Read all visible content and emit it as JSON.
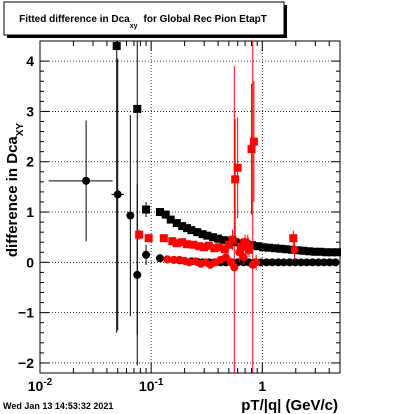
{
  "title": "Fitted difference in Dca",
  "title_sub": "xy",
  "title_rest": "for Global Rec Pion EtapT",
  "xlabel": "pT/|q| (GeV/c)",
  "ylabel": "difference in Dca",
  "ylabel_sub": "XY",
  "timestamp": "Wed Jan 13 14:53:32 2021",
  "chart_data": {
    "type": "scatter",
    "x_scale": "log",
    "xlim": [
      0.01,
      5.0
    ],
    "ylim": [
      -2.2,
      4.4
    ],
    "grid": true,
    "x_ticks": [
      {
        "value": 0.01,
        "base": "10",
        "exp": "-2"
      },
      {
        "value": 0.1,
        "base": "10",
        "exp": "-1"
      },
      {
        "value": 1,
        "base": "1",
        "exp": ""
      }
    ],
    "y_ticks": [
      -2,
      -1,
      0,
      1,
      2,
      3,
      4
    ],
    "series": [
      {
        "marker": "square",
        "color": "#000000",
        "points": [
          {
            "x": 0.049,
            "y": 4.3,
            "err": 5.7
          },
          {
            "x": 0.075,
            "y": 3.05,
            "err": 4.5
          },
          {
            "x": 0.09,
            "y": 1.05,
            "err": 0.15
          },
          {
            "x": 0.12,
            "y": 1.0,
            "err": 0.08
          },
          {
            "x": 0.135,
            "y": 0.95,
            "err": 0.08
          },
          {
            "x": 0.15,
            "y": 0.85,
            "err": 0.06
          },
          {
            "x": 0.17,
            "y": 0.78,
            "err": 0.05
          },
          {
            "x": 0.19,
            "y": 0.72,
            "err": 0.05
          },
          {
            "x": 0.21,
            "y": 0.68,
            "err": 0.05
          },
          {
            "x": 0.23,
            "y": 0.64,
            "err": 0.04
          },
          {
            "x": 0.26,
            "y": 0.6,
            "err": 0.04
          },
          {
            "x": 0.29,
            "y": 0.56,
            "err": 0.04
          },
          {
            "x": 0.32,
            "y": 0.53,
            "err": 0.04
          },
          {
            "x": 0.36,
            "y": 0.5,
            "err": 0.04
          },
          {
            "x": 0.4,
            "y": 0.47,
            "err": 0.05
          },
          {
            "x": 0.45,
            "y": 0.44,
            "err": 0.05
          },
          {
            "x": 0.5,
            "y": 0.42,
            "err": 0.05
          },
          {
            "x": 0.57,
            "y": 0.4,
            "err": 0.05
          },
          {
            "x": 0.64,
            "y": 0.38,
            "err": 0.05
          },
          {
            "x": 0.72,
            "y": 0.36,
            "err": 0.05
          },
          {
            "x": 0.81,
            "y": 0.34,
            "err": 0.05
          },
          {
            "x": 0.91,
            "y": 0.32,
            "err": 0.05
          },
          {
            "x": 1.02,
            "y": 0.3,
            "err": 0.05
          },
          {
            "x": 1.15,
            "y": 0.29,
            "err": 0.05
          },
          {
            "x": 1.3,
            "y": 0.28,
            "err": 0.05
          },
          {
            "x": 1.46,
            "y": 0.27,
            "err": 0.05
          },
          {
            "x": 1.64,
            "y": 0.26,
            "err": 0.05
          },
          {
            "x": 1.85,
            "y": 0.25,
            "err": 0.05
          },
          {
            "x": 2.08,
            "y": 0.24,
            "err": 0.05
          },
          {
            "x": 2.34,
            "y": 0.23,
            "err": 0.05
          },
          {
            "x": 2.63,
            "y": 0.22,
            "err": 0.05
          },
          {
            "x": 2.96,
            "y": 0.21,
            "err": 0.05
          },
          {
            "x": 3.33,
            "y": 0.21,
            "err": 0.05
          },
          {
            "x": 3.75,
            "y": 0.2,
            "err": 0.05
          },
          {
            "x": 4.22,
            "y": 0.2,
            "err": 0.05
          },
          {
            "x": 4.7,
            "y": 0.2,
            "err": 0.05
          }
        ]
      },
      {
        "marker": "circle",
        "color": "#000000",
        "points": [
          {
            "x": 0.026,
            "y": 1.62,
            "err": 1.2,
            "xerr": [
              0.012,
              0.045
            ]
          },
          {
            "x": 0.05,
            "y": 1.35,
            "err": 2.7,
            "xerr": [
              0.044,
              0.057
            ]
          },
          {
            "x": 0.065,
            "y": 0.93,
            "err": 2.0
          },
          {
            "x": 0.075,
            "y": -0.25,
            "err": 1.8
          },
          {
            "x": 0.09,
            "y": 0.15,
            "err": 0.2
          },
          {
            "x": 0.12,
            "y": 0.08,
            "err": 0.05
          },
          {
            "x": 0.14,
            "y": 0.06,
            "err": 0.04
          },
          {
            "x": 0.16,
            "y": 0.05,
            "err": 0.04
          },
          {
            "x": 0.18,
            "y": 0.04,
            "err": 0.04
          },
          {
            "x": 0.2,
            "y": 0.03,
            "err": 0.04
          },
          {
            "x": 0.23,
            "y": 0.02,
            "err": 0.04
          },
          {
            "x": 0.26,
            "y": 0.01,
            "err": 0.04
          },
          {
            "x": 0.29,
            "y": 0.0,
            "err": 0.04
          },
          {
            "x": 0.33,
            "y": 0.0,
            "err": 0.04
          },
          {
            "x": 0.37,
            "y": 0.0,
            "err": 0.04
          },
          {
            "x": 0.42,
            "y": 0.0,
            "err": 0.04
          },
          {
            "x": 0.47,
            "y": 0.0,
            "err": 0.04
          },
          {
            "x": 0.53,
            "y": 0.0,
            "err": 0.04
          },
          {
            "x": 0.6,
            "y": 0.0,
            "err": 0.04
          },
          {
            "x": 0.68,
            "y": 0.0,
            "err": 0.04
          },
          {
            "x": 0.76,
            "y": 0.0,
            "err": 0.04
          },
          {
            "x": 0.86,
            "y": 0.0,
            "err": 0.04
          },
          {
            "x": 0.97,
            "y": 0.0,
            "err": 0.04
          },
          {
            "x": 1.09,
            "y": 0.0,
            "err": 0.04
          },
          {
            "x": 1.23,
            "y": 0.0,
            "err": 0.04
          },
          {
            "x": 1.39,
            "y": 0.0,
            "err": 0.04
          },
          {
            "x": 1.56,
            "y": 0.0,
            "err": 0.04
          },
          {
            "x": 1.76,
            "y": 0.0,
            "err": 0.04
          },
          {
            "x": 1.98,
            "y": 0.0,
            "err": 0.04
          },
          {
            "x": 2.23,
            "y": 0.0,
            "err": 0.04
          },
          {
            "x": 2.51,
            "y": 0.0,
            "err": 0.04
          },
          {
            "x": 2.83,
            "y": 0.0,
            "err": 0.04
          },
          {
            "x": 3.19,
            "y": 0.0,
            "err": 0.04
          },
          {
            "x": 3.59,
            "y": 0.0,
            "err": 0.04
          },
          {
            "x": 4.04,
            "y": 0.0,
            "err": 0.04
          },
          {
            "x": 4.55,
            "y": 0.0,
            "err": 0.04
          }
        ]
      },
      {
        "marker": "square",
        "color": "#ff0000",
        "points": [
          {
            "x": 0.078,
            "y": 0.55,
            "err": 0.1
          },
          {
            "x": 0.095,
            "y": 0.48,
            "err": 0.08
          },
          {
            "x": 0.13,
            "y": 0.48,
            "err": 0.06
          },
          {
            "x": 0.155,
            "y": 0.42,
            "err": 0.06
          },
          {
            "x": 0.17,
            "y": 0.38,
            "err": 0.06
          },
          {
            "x": 0.19,
            "y": 0.4,
            "err": 0.06
          },
          {
            "x": 0.21,
            "y": 0.36,
            "err": 0.06
          },
          {
            "x": 0.24,
            "y": 0.35,
            "err": 0.06
          },
          {
            "x": 0.27,
            "y": 0.32,
            "err": 0.06
          },
          {
            "x": 0.3,
            "y": 0.3,
            "err": 0.06
          },
          {
            "x": 0.33,
            "y": 0.33,
            "err": 0.06
          },
          {
            "x": 0.37,
            "y": 0.28,
            "err": 0.07
          },
          {
            "x": 0.41,
            "y": 0.3,
            "err": 0.07
          },
          {
            "x": 0.46,
            "y": 0.26,
            "err": 0.08
          },
          {
            "x": 0.5,
            "y": 0.35,
            "err": 0.1
          },
          {
            "x": 0.54,
            "y": 0.45,
            "err": 0.2
          },
          {
            "x": 0.57,
            "y": 1.65,
            "err": 1.2
          },
          {
            "x": 0.6,
            "y": 1.88,
            "err": 1.0
          },
          {
            "x": 0.64,
            "y": 0.3,
            "err": 0.15
          },
          {
            "x": 0.7,
            "y": 0.4,
            "err": 0.15
          },
          {
            "x": 0.76,
            "y": 0.25,
            "err": 0.15
          },
          {
            "x": 0.8,
            "y": 2.25,
            "err": 1.3
          },
          {
            "x": 0.84,
            "y": 2.4,
            "err": 1.2
          },
          {
            "x": 1.9,
            "y": 0.48,
            "err": 0.15
          }
        ]
      },
      {
        "marker": "circle",
        "color": "#ff0000",
        "points": [
          {
            "x": 0.14,
            "y": 0.06,
            "err": 0.05
          },
          {
            "x": 0.16,
            "y": 0.05,
            "err": 0.05
          },
          {
            "x": 0.18,
            "y": 0.05,
            "err": 0.05
          },
          {
            "x": 0.2,
            "y": 0.03,
            "err": 0.05
          },
          {
            "x": 0.22,
            "y": 0.0,
            "err": 0.05
          },
          {
            "x": 0.25,
            "y": 0.02,
            "err": 0.05
          },
          {
            "x": 0.28,
            "y": -0.03,
            "err": 0.05
          },
          {
            "x": 0.31,
            "y": 0.0,
            "err": 0.05
          },
          {
            "x": 0.34,
            "y": -0.05,
            "err": 0.05
          },
          {
            "x": 0.38,
            "y": 0.0,
            "err": 0.05
          },
          {
            "x": 0.42,
            "y": 0.05,
            "err": 0.06
          },
          {
            "x": 0.47,
            "y": 0.1,
            "err": 0.08
          },
          {
            "x": 0.52,
            "y": 0.0,
            "err": 0.1
          },
          {
            "x": 0.56,
            "y": -0.1,
            "err": 4.0
          },
          {
            "x": 0.62,
            "y": 0.2,
            "err": 0.2
          },
          {
            "x": 0.68,
            "y": 0.1,
            "err": 0.15
          },
          {
            "x": 0.74,
            "y": 0.35,
            "err": 0.2
          },
          {
            "x": 0.82,
            "y": -0.05,
            "err": 4.5
          },
          {
            "x": 0.88,
            "y": 0.0,
            "err": 0.15
          },
          {
            "x": 1.95,
            "y": 0.25,
            "err": 0.2
          }
        ]
      }
    ]
  }
}
